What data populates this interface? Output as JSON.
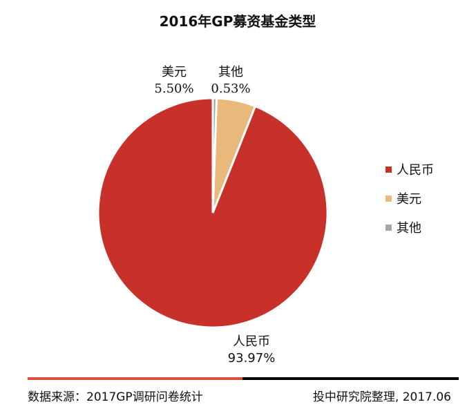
{
  "chart_data": {
    "type": "pie",
    "title": "2016年GP募资基金类型",
    "slices": [
      {
        "name": "人民币",
        "value": 93.97,
        "label": "93.97%",
        "color": "#c8312a"
      },
      {
        "name": "美元",
        "value": 5.5,
        "label": "5.50%",
        "color": "#e8b97a"
      },
      {
        "name": "其他",
        "value": 0.53,
        "label": "0.53%",
        "color": "#a6a6a6"
      }
    ],
    "legend": {
      "placement": "right",
      "entries": [
        "人民币",
        "美元",
        "其他"
      ]
    }
  },
  "footer": {
    "source": "数据来源：2017GP调研问卷统计",
    "credit": "投中研究院整理, 2017.06"
  }
}
